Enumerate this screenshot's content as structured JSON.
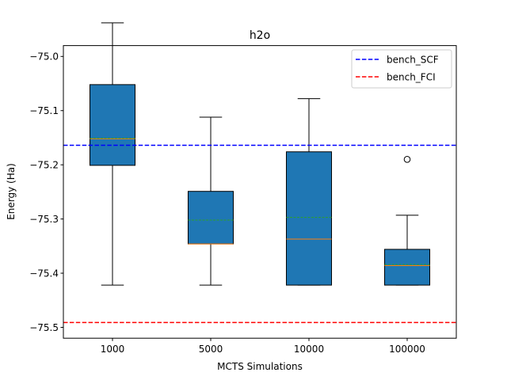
{
  "chart_data": {
    "type": "box",
    "title": "h2o",
    "xlabel": "MCTS Simulations",
    "ylabel": "Energy (Ha)",
    "categories": [
      "1000",
      "5000",
      "10000",
      "100000"
    ],
    "ylim": [
      -75.52,
      -74.98
    ],
    "yticks": [
      -75.0,
      -75.1,
      -75.2,
      -75.3,
      -75.4,
      -75.5
    ],
    "ytick_labels": [
      "−75.0",
      "−75.1",
      "−75.2",
      "−75.3",
      "−75.4",
      "−75.5"
    ],
    "boxes": [
      {
        "category": "1000",
        "whisker_low": -75.422,
        "q1": -75.201,
        "median": -75.152,
        "mean": -75.151,
        "q3": -75.052,
        "whisker_high": -74.938,
        "outliers": []
      },
      {
        "category": "5000",
        "whisker_low": -75.422,
        "q1": -75.346,
        "median": -75.346,
        "mean": -75.302,
        "q3": -75.249,
        "whisker_high": -75.112,
        "outliers": []
      },
      {
        "category": "10000",
        "whisker_low": -75.422,
        "q1": -75.422,
        "median": -75.337,
        "mean": -75.297,
        "q3": -75.176,
        "whisker_high": -75.078,
        "outliers": []
      },
      {
        "category": "100000",
        "whisker_low": -75.422,
        "q1": -75.422,
        "median": -75.386,
        "mean": -75.384,
        "q3": -75.356,
        "whisker_high": -75.293,
        "outliers": [
          -75.19
        ]
      }
    ],
    "reference_lines": [
      {
        "name": "bench_SCF",
        "value": -75.164,
        "color": "#0000ff",
        "style": "dashed"
      },
      {
        "name": "bench_FCI",
        "value": -75.491,
        "color": "#ff0000",
        "style": "dashed"
      }
    ],
    "box_color": "#1f77b4",
    "median_color": "#ff7f0e",
    "mean_color": "#2ca02c",
    "grid": false,
    "legend_position": "top-right"
  }
}
